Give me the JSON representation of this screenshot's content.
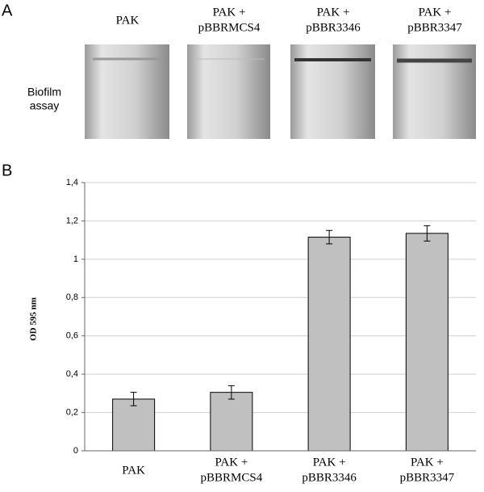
{
  "panel_a": {
    "label": "A",
    "row_label": "Biofilm\nassay",
    "tube_labels": [
      "PAK",
      "PAK +\npBBRMCS4",
      "PAK +\npBBR3346",
      "PAK +\npBBR3347"
    ]
  },
  "chart_data": {
    "type": "bar",
    "panel_label": "B",
    "y_label": "OD 595 nm",
    "categories": [
      "PAK",
      "PAK +\npBBRMCS4",
      "PAK +\npBBR3346",
      "PAK +\npBBR3347"
    ],
    "values": [
      0.27,
      0.305,
      1.115,
      1.135
    ],
    "errors": [
      0.035,
      0.035,
      0.035,
      0.04
    ],
    "color": "#c0c0c0",
    "ylim": [
      0,
      1.4
    ],
    "yticks": [
      0,
      {
        "value": 0.2,
        "label": "0,2"
      },
      {
        "value": 0.4,
        "label": "0,4"
      },
      {
        "value": 0.6,
        "label": "0,6"
      },
      {
        "value": 0.8,
        "label": "0,8"
      },
      1,
      {
        "value": 1.2,
        "label": "1,2"
      },
      {
        "value": 1.4,
        "label": "1,4"
      }
    ],
    "grid": true
  }
}
